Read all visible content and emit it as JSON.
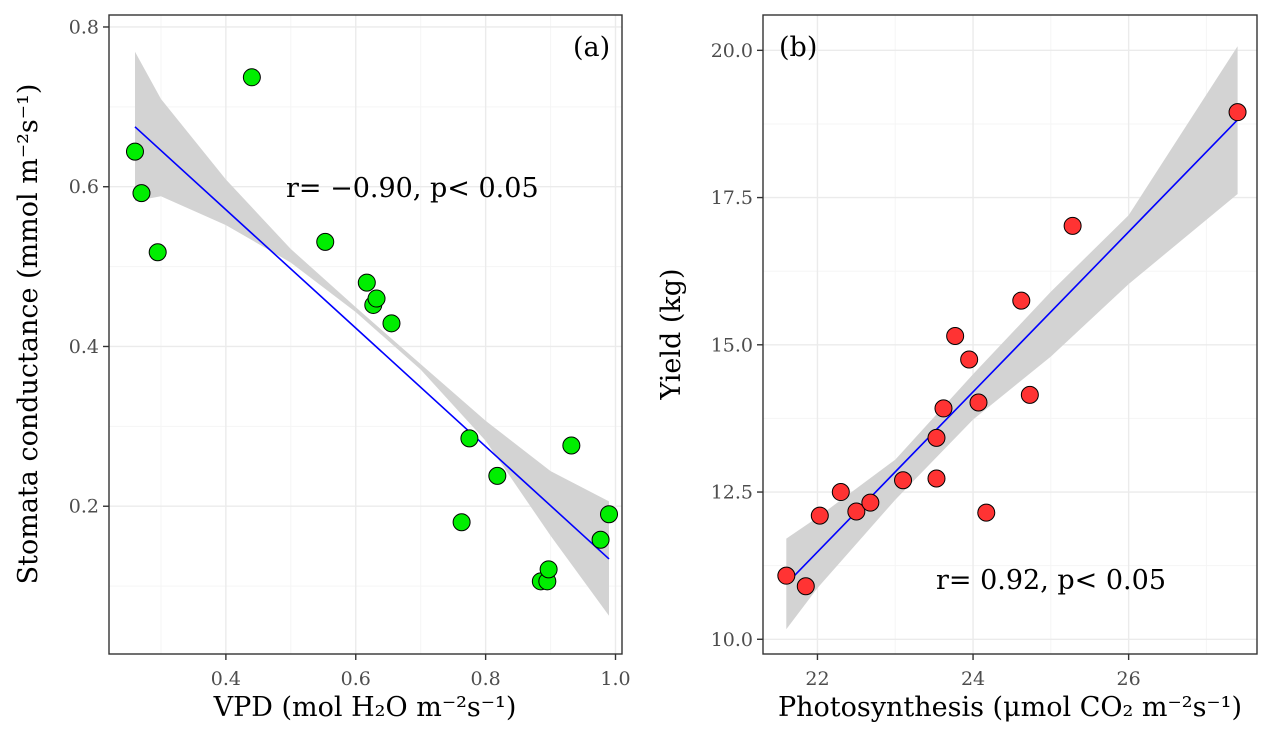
{
  "colors": {
    "grid_major": "#ebebeb",
    "grid_minor": "#f5f5f5",
    "band": "#d3d3d3",
    "fit_line": "#0000ff",
    "panel_a_points": "#00ee00",
    "panel_b_points": "#ff3333"
  },
  "chart_data": [
    {
      "type": "scatter",
      "panel_label": "(a)",
      "annotation": "r= −0.90, p< 0.05",
      "xlabel": "VPD (mol H₂O m⁻²s⁻¹)",
      "ylabel": "Stomata conductance (mmol m⁻²s⁻¹)",
      "xlim": [
        0.22,
        1.01
      ],
      "ylim": [
        0.015,
        0.815
      ],
      "xticks": [
        0.4,
        0.6,
        0.8,
        1.0
      ],
      "xtick_labels": [
        "0.4",
        "0.6",
        "0.8",
        "1.0"
      ],
      "yticks": [
        0.2,
        0.4,
        0.6,
        0.8
      ],
      "ytick_labels": [
        "0.2",
        "0.4",
        "0.6",
        "0.8"
      ],
      "x_minor": [
        0.3,
        0.5,
        0.7,
        0.9
      ],
      "y_minor": [
        0.1,
        0.3,
        0.5,
        0.7
      ],
      "grid": true,
      "fit": {
        "x_start": 0.26,
        "y_start": 0.675,
        "x_end": 0.99,
        "y_end": 0.134
      },
      "confidence_band": {
        "x": [
          0.26,
          0.3,
          0.4,
          0.5,
          0.6,
          0.7,
          0.8,
          0.9,
          0.99
        ],
        "upper": [
          0.769,
          0.71,
          0.609,
          0.522,
          0.449,
          0.378,
          0.307,
          0.244,
          0.206
        ],
        "lower": [
          0.582,
          0.588,
          0.552,
          0.505,
          0.443,
          0.371,
          0.282,
          0.163,
          0.063
        ]
      },
      "points": {
        "x": [
          0.26,
          0.27,
          0.295,
          0.44,
          0.553,
          0.617,
          0.627,
          0.632,
          0.655,
          0.763,
          0.775,
          0.818,
          0.885,
          0.895,
          0.897,
          0.932,
          0.977,
          0.99
        ],
        "y": [
          0.644,
          0.592,
          0.518,
          0.737,
          0.531,
          0.48,
          0.452,
          0.46,
          0.429,
          0.18,
          0.285,
          0.238,
          0.106,
          0.106,
          0.121,
          0.276,
          0.158,
          0.19
        ]
      }
    },
    {
      "type": "scatter",
      "panel_label": "(b)",
      "annotation": "r= 0.92, p< 0.05",
      "xlabel": "Photosynthesis (μmol CO₂ m⁻²s⁻¹)",
      "ylabel": "Yield (kg)",
      "xlim": [
        21.3,
        27.65
      ],
      "ylim": [
        9.75,
        20.6
      ],
      "xticks": [
        22,
        24,
        26
      ],
      "xtick_labels": [
        "22",
        "24",
        "26"
      ],
      "yticks": [
        10.0,
        12.5,
        15.0,
        17.5,
        20.0
      ],
      "ytick_labels": [
        "10.0",
        "12.5",
        "15.0",
        "17.5",
        "20.0"
      ],
      "x_minor": [
        21,
        23,
        25,
        27
      ],
      "y_minor": [
        11.25,
        13.75,
        16.25,
        18.75
      ],
      "grid": true,
      "fit": {
        "x_start": 21.6,
        "y_start": 10.94,
        "x_end": 27.4,
        "y_end": 18.82
      },
      "confidence_band": {
        "x": [
          21.6,
          22.0,
          23.0,
          24.0,
          25.0,
          26.0,
          27.4
        ],
        "upper": [
          11.71,
          12.07,
          13.05,
          14.5,
          15.9,
          17.2,
          20.07
        ],
        "lower": [
          10.17,
          10.87,
          12.37,
          13.73,
          14.8,
          16.03,
          17.56
        ]
      },
      "points": {
        "x": [
          21.6,
          21.85,
          22.03,
          22.3,
          22.5,
          22.68,
          23.1,
          23.53,
          23.53,
          23.62,
          23.77,
          23.95,
          24.07,
          24.17,
          24.62,
          24.73,
          25.28,
          27.4
        ],
        "y": [
          11.08,
          10.9,
          12.1,
          12.5,
          12.17,
          12.32,
          12.7,
          12.73,
          13.42,
          13.92,
          15.15,
          14.75,
          14.02,
          12.15,
          15.75,
          14.15,
          17.02,
          18.95
        ]
      }
    }
  ]
}
